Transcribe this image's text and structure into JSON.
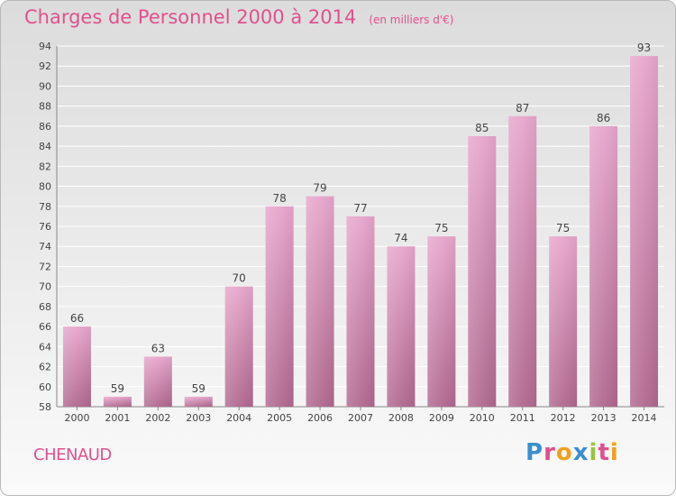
{
  "header": {
    "title": "Charges de Personnel 2000 à 2014",
    "subtitle": "(en milliers d'€)"
  },
  "footer": {
    "commune": "CHENAUD",
    "brand": "Proxiti"
  },
  "colors": {
    "title": "#e0508e",
    "bar_top": "#e7a6cc",
    "bar_bottom": "#b0688f",
    "gridline": "#ffffff",
    "brand_letters": [
      "#3a8fd0",
      "#e0508e",
      "#f0a020",
      "#3a8fd0",
      "#9ac43c",
      "#e0508e",
      "#f0a020"
    ]
  },
  "chart_data": {
    "type": "bar",
    "categories": [
      "2000",
      "2001",
      "2002",
      "2003",
      "2004",
      "2005",
      "2006",
      "2007",
      "2008",
      "2009",
      "2010",
      "2011",
      "2012",
      "2013",
      "2014"
    ],
    "values": [
      66,
      59,
      63,
      59,
      70,
      78,
      79,
      77,
      74,
      75,
      85,
      87,
      75,
      86,
      93
    ],
    "ylim": [
      58,
      94
    ],
    "yticks": [
      58,
      60,
      62,
      64,
      66,
      68,
      70,
      72,
      74,
      76,
      78,
      80,
      82,
      84,
      86,
      88,
      90,
      92,
      94
    ],
    "grid": true
  }
}
